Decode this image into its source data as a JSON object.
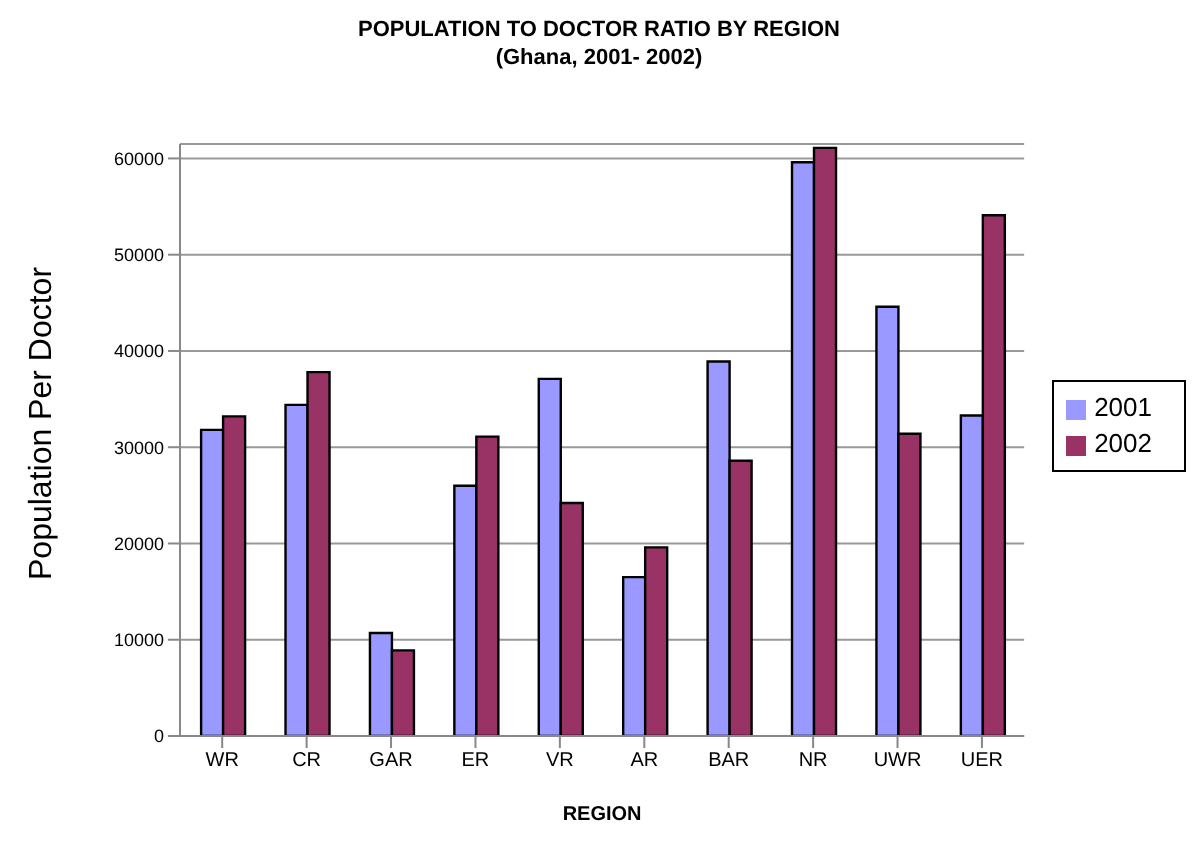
{
  "chart_data": {
    "type": "bar",
    "title": "POPULATION TO DOCTOR RATIO BY REGION",
    "subtitle": "(Ghana, 2001- 2002)",
    "xlabel": "REGION",
    "ylabel": "Population Per Doctor",
    "categories": [
      "WR",
      "CR",
      "GAR",
      "ER",
      "VR",
      "AR",
      "BAR",
      "NR",
      "UWR",
      "UER"
    ],
    "series": [
      {
        "name": "2001",
        "color": "#9999ff",
        "values": [
          31800,
          34400,
          10700,
          26000,
          37100,
          16500,
          38900,
          59600,
          44600,
          33300
        ]
      },
      {
        "name": "2002",
        "color": "#993366",
        "values": [
          33200,
          37800,
          8900,
          31100,
          24200,
          19600,
          28600,
          61100,
          31400,
          54100
        ]
      }
    ],
    "ylim": [
      0,
      61500
    ],
    "yticks": [
      0,
      10000,
      20000,
      30000,
      40000,
      50000,
      60000
    ],
    "grid": "y",
    "legend": "right"
  }
}
